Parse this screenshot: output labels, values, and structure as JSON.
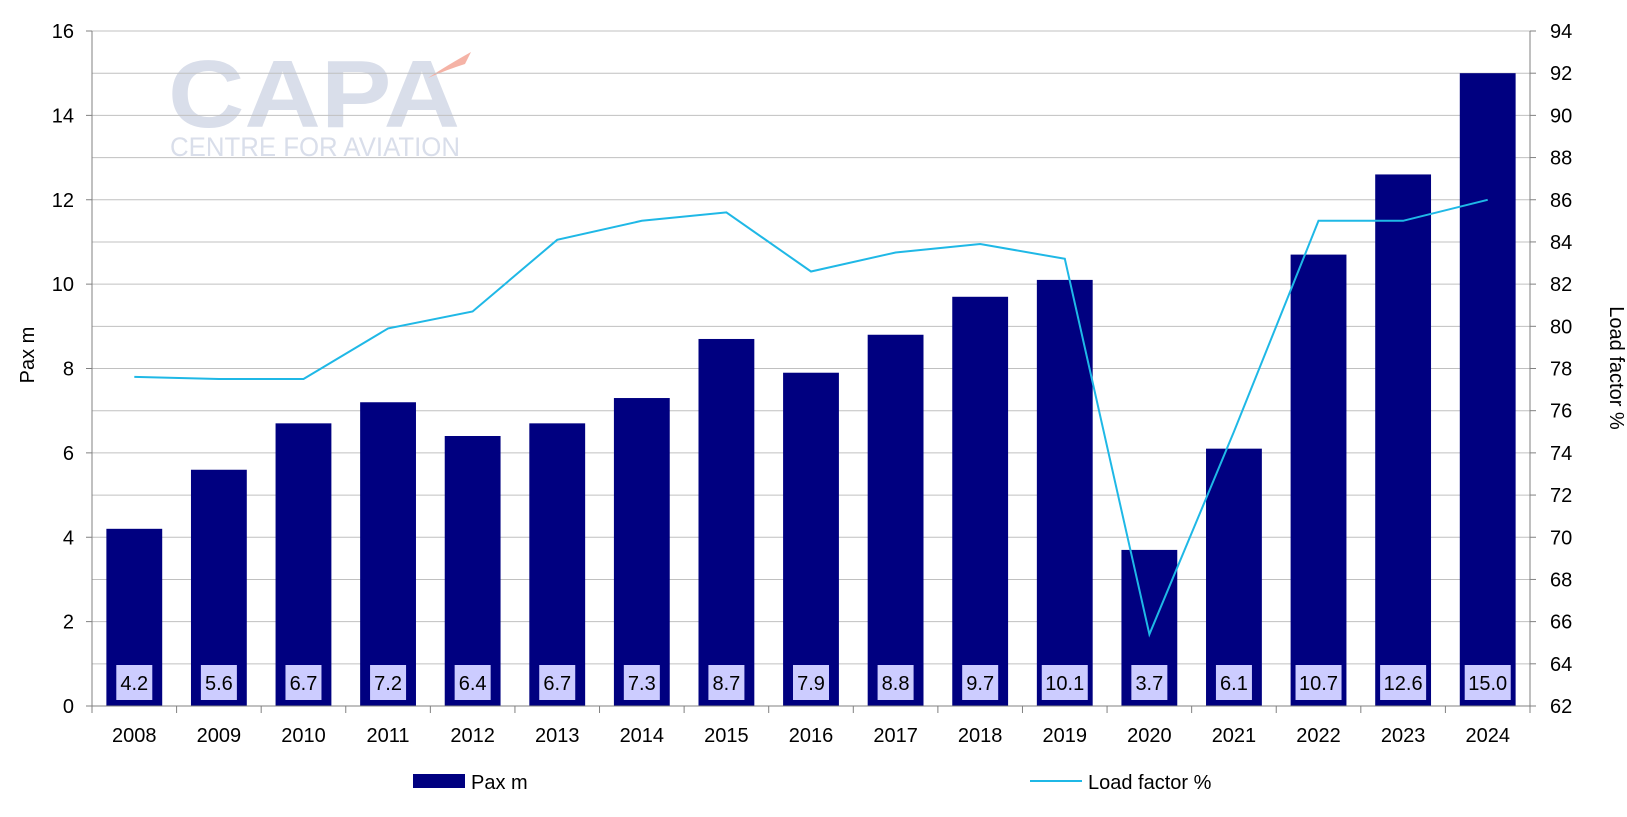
{
  "watermark": {
    "brand": "CAPA",
    "tagline": "CENTRE FOR AVIATION"
  },
  "colors": {
    "bar": "#000080",
    "line": "#1fb8e6",
    "label_bg": "#ccccff",
    "grid": "#c0c0c0",
    "axis": "#808080"
  },
  "chart_data": {
    "type": "bar",
    "categories": [
      "2008",
      "2009",
      "2010",
      "2011",
      "2012",
      "2013",
      "2014",
      "2015",
      "2016",
      "2017",
      "2018",
      "2019",
      "2020",
      "2021",
      "2022",
      "2023",
      "2024"
    ],
    "series": [
      {
        "name": "Pax m",
        "type": "bar",
        "axis": "left",
        "values": [
          4.2,
          5.6,
          6.7,
          7.2,
          6.4,
          6.7,
          7.3,
          8.7,
          7.9,
          8.8,
          9.7,
          10.1,
          3.7,
          6.1,
          10.7,
          12.6,
          15.0
        ],
        "labels": [
          "4.2",
          "5.6",
          "6.7",
          "7.2",
          "6.4",
          "6.7",
          "7.3",
          "8.7",
          "7.9",
          "8.8",
          "9.7",
          "10.1",
          "3.7",
          "6.1",
          "10.7",
          "12.6",
          "15.0"
        ]
      },
      {
        "name": "Load factor %",
        "type": "line",
        "axis": "right",
        "values": [
          77.6,
          77.5,
          77.5,
          79.9,
          80.7,
          84.1,
          85.0,
          85.4,
          82.6,
          83.5,
          83.9,
          83.2,
          65.4,
          75.0,
          85.0,
          85.0,
          86.0
        ]
      }
    ],
    "ylabel": "Pax m",
    "y2label": "Load factor %",
    "ylim": [
      0,
      16
    ],
    "y2lim": [
      62,
      94
    ],
    "yticks": [
      "0",
      "2",
      "4",
      "6",
      "8",
      "10",
      "12",
      "14",
      "16"
    ],
    "y2ticks": [
      "62",
      "64",
      "66",
      "68",
      "70",
      "72",
      "74",
      "76",
      "78",
      "80",
      "82",
      "84",
      "86",
      "88",
      "90",
      "92",
      "94"
    ],
    "grid": true,
    "legend": "bottom"
  }
}
